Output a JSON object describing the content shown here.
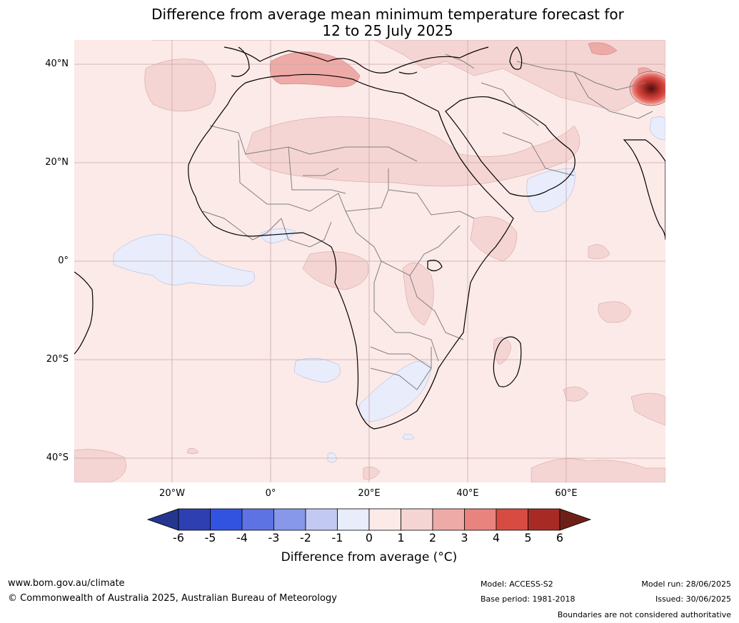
{
  "title": {
    "line1": "Difference from average mean minimum temperature forecast for",
    "line2": "12 to 25 July 2025"
  },
  "map": {
    "lat_ticks": [
      "40°N",
      "20°N",
      "0°",
      "20°S",
      "40°S"
    ],
    "lon_ticks": [
      "20°W",
      "0°",
      "20°E",
      "40°E",
      "60°E"
    ],
    "colors": {
      "ocean_base": "#fbeae8",
      "plus_1_2": "#f5d5d3",
      "plus_2_3": "#eeaaa6",
      "plus_3_4": "#e9837e",
      "plus_4_5": "#d84b43",
      "plus_5_6": "#a72b24",
      "minus_0_1": "#e8ecfb",
      "coast": "#000000",
      "borders": "#7f7f7f",
      "grid": "#c9a7a7"
    }
  },
  "colorbar": {
    "ticks": [
      "-6",
      "-5",
      "-4",
      "-3",
      "-2",
      "-1",
      "0",
      "1",
      "2",
      "3",
      "4",
      "5",
      "6"
    ],
    "colors": [
      "#25368f",
      "#2e3fb1",
      "#3153e0",
      "#5d73e3",
      "#8798ea",
      "#c2c9f3",
      "#e8ecfb",
      "#fbeae8",
      "#f5d5d3",
      "#eeaaa6",
      "#e9837e",
      "#d84b43",
      "#a72b24",
      "#6e2018"
    ],
    "label": "Difference from average (°C)"
  },
  "footer": {
    "url": "www.bom.gov.au/climate",
    "copyright": "© Commonwealth of Australia 2025, Australian Bureau of Meteorology",
    "model": "Model: ACCESS-S2",
    "base_period": "Base period: 1981-2018",
    "model_run": "Model run: 28/06/2025",
    "issued": "Issued: 30/06/2025",
    "disclaimer": "Boundaries are not considered authoritative"
  }
}
